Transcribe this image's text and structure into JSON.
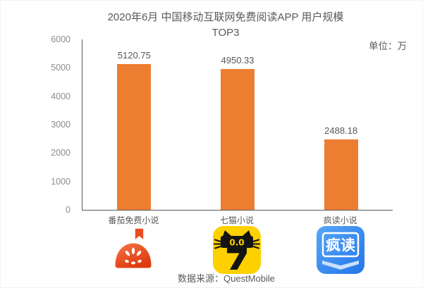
{
  "title": {
    "line1": "2020年6月 中国移动互联网免费阅读APP 用户规模",
    "line2": "TOP3"
  },
  "unit_label": "单位：万",
  "source_label": "数据来源：QuestMobile",
  "chart_data": {
    "type": "bar",
    "title": "2020年6月 中国移动互联网免费阅读APP 用户规模 TOP3",
    "unit": "万",
    "categories": [
      "番茄免费小说",
      "七猫小说",
      "疯读小说"
    ],
    "values": [
      5120.75,
      4950.33,
      2488.18
    ],
    "value_labels": [
      "5120.75",
      "4950.33",
      "2488.18"
    ],
    "xlabel": "",
    "ylabel": "",
    "ylim": [
      0,
      6000
    ],
    "yticks": [
      0,
      1000,
      2000,
      3000,
      4000,
      5000,
      6000
    ],
    "grid": false,
    "legend": false,
    "bar_color": "#ED7D31",
    "source": "QuestMobile"
  },
  "icons": [
    {
      "app": "番茄免费小说",
      "style": "red tomato half with bookmark"
    },
    {
      "app": "七猫小说",
      "eyes": "0.0",
      "digit": "7",
      "style": "yellow square with black cat and 7"
    },
    {
      "app": "疯读小说",
      "text": "疯读",
      "style": "blue square with white text and open book"
    }
  ],
  "colors": {
    "bar": "#ED7D31",
    "title_text": "#595959",
    "tick_text": "#8c8c8c",
    "axis": "#595959",
    "fanqie_red": "#E8400F",
    "qimao_yellow": "#FDD000",
    "fengdu_blue": "#2F82EB"
  }
}
